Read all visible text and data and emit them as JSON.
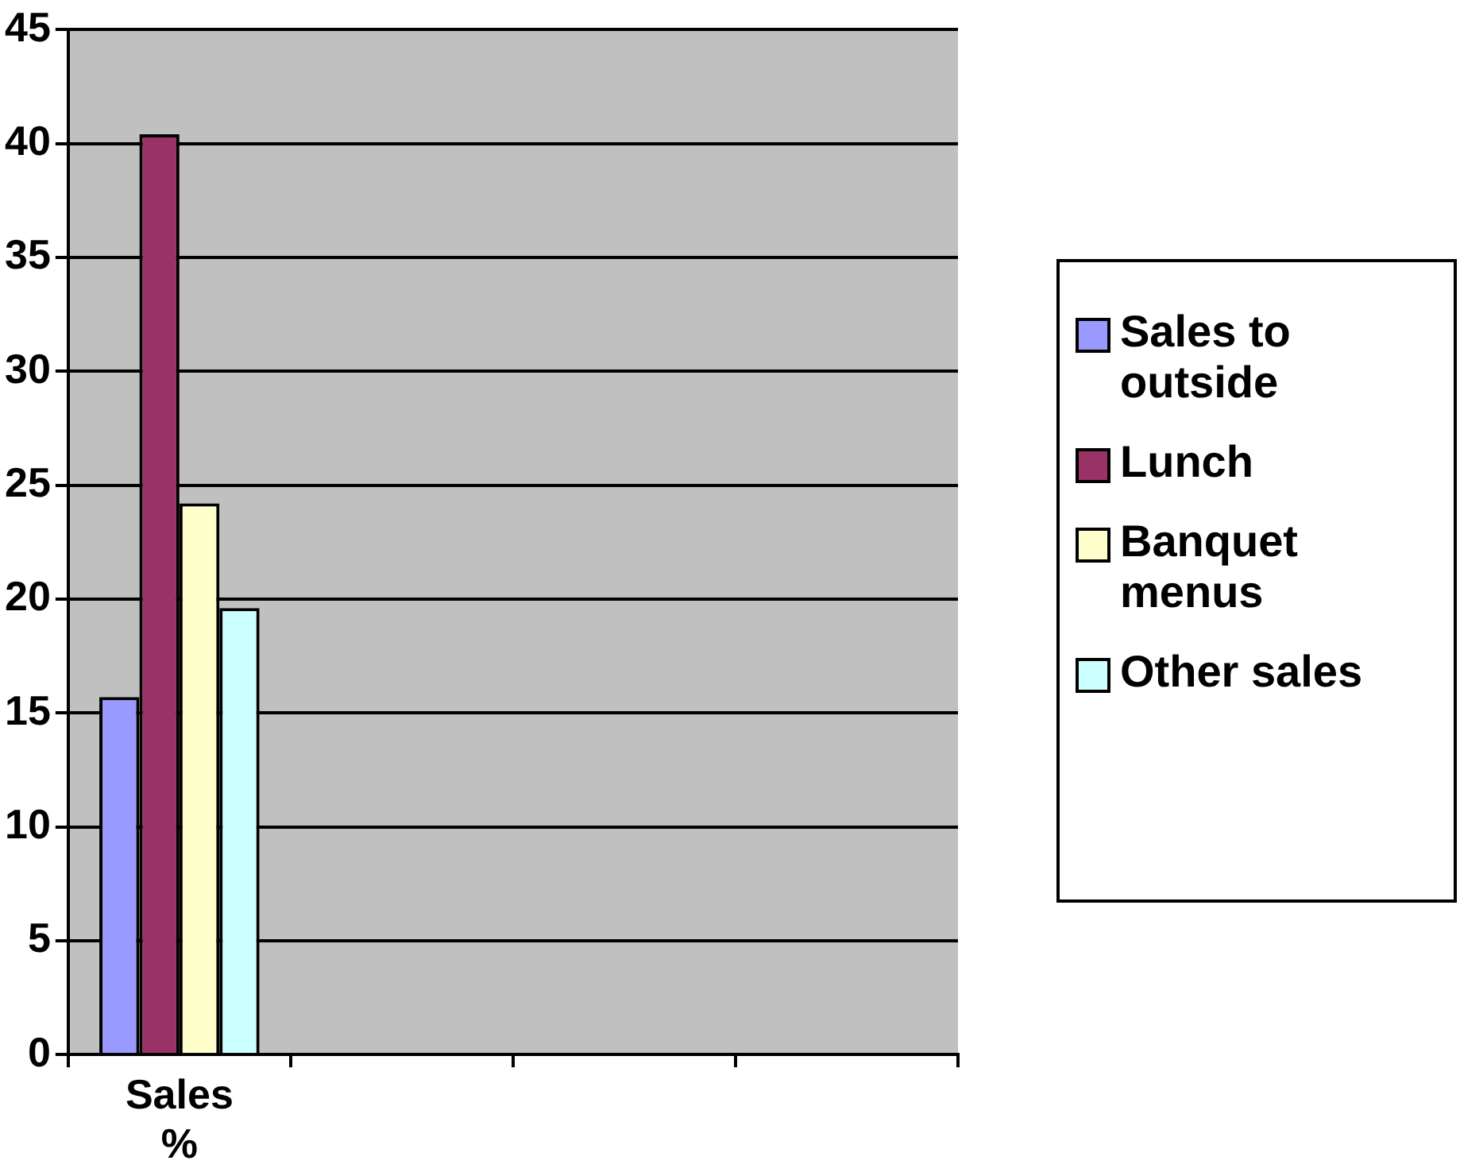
{
  "chart_data": {
    "type": "bar",
    "categories": [
      "Sales %",
      null,
      null,
      null
    ],
    "series": [
      {
        "name": "Sales to outside",
        "color": "#9999ff",
        "values": [
          15.7,
          null,
          null,
          null
        ]
      },
      {
        "name": "Lunch",
        "color": "#993366",
        "values": [
          40.4,
          null,
          null,
          null
        ]
      },
      {
        "name": "Banquet menus",
        "color": "#ffffcc",
        "values": [
          24.2,
          null,
          null,
          null
        ]
      },
      {
        "name": "Other sales",
        "color": "#ccffff",
        "values": [
          19.6,
          null,
          null,
          null
        ]
      }
    ],
    "ylim": [
      0,
      45
    ],
    "yticks": [
      0,
      5,
      10,
      15,
      20,
      25,
      30,
      35,
      40,
      45
    ],
    "grid": "y",
    "legend": "right"
  }
}
